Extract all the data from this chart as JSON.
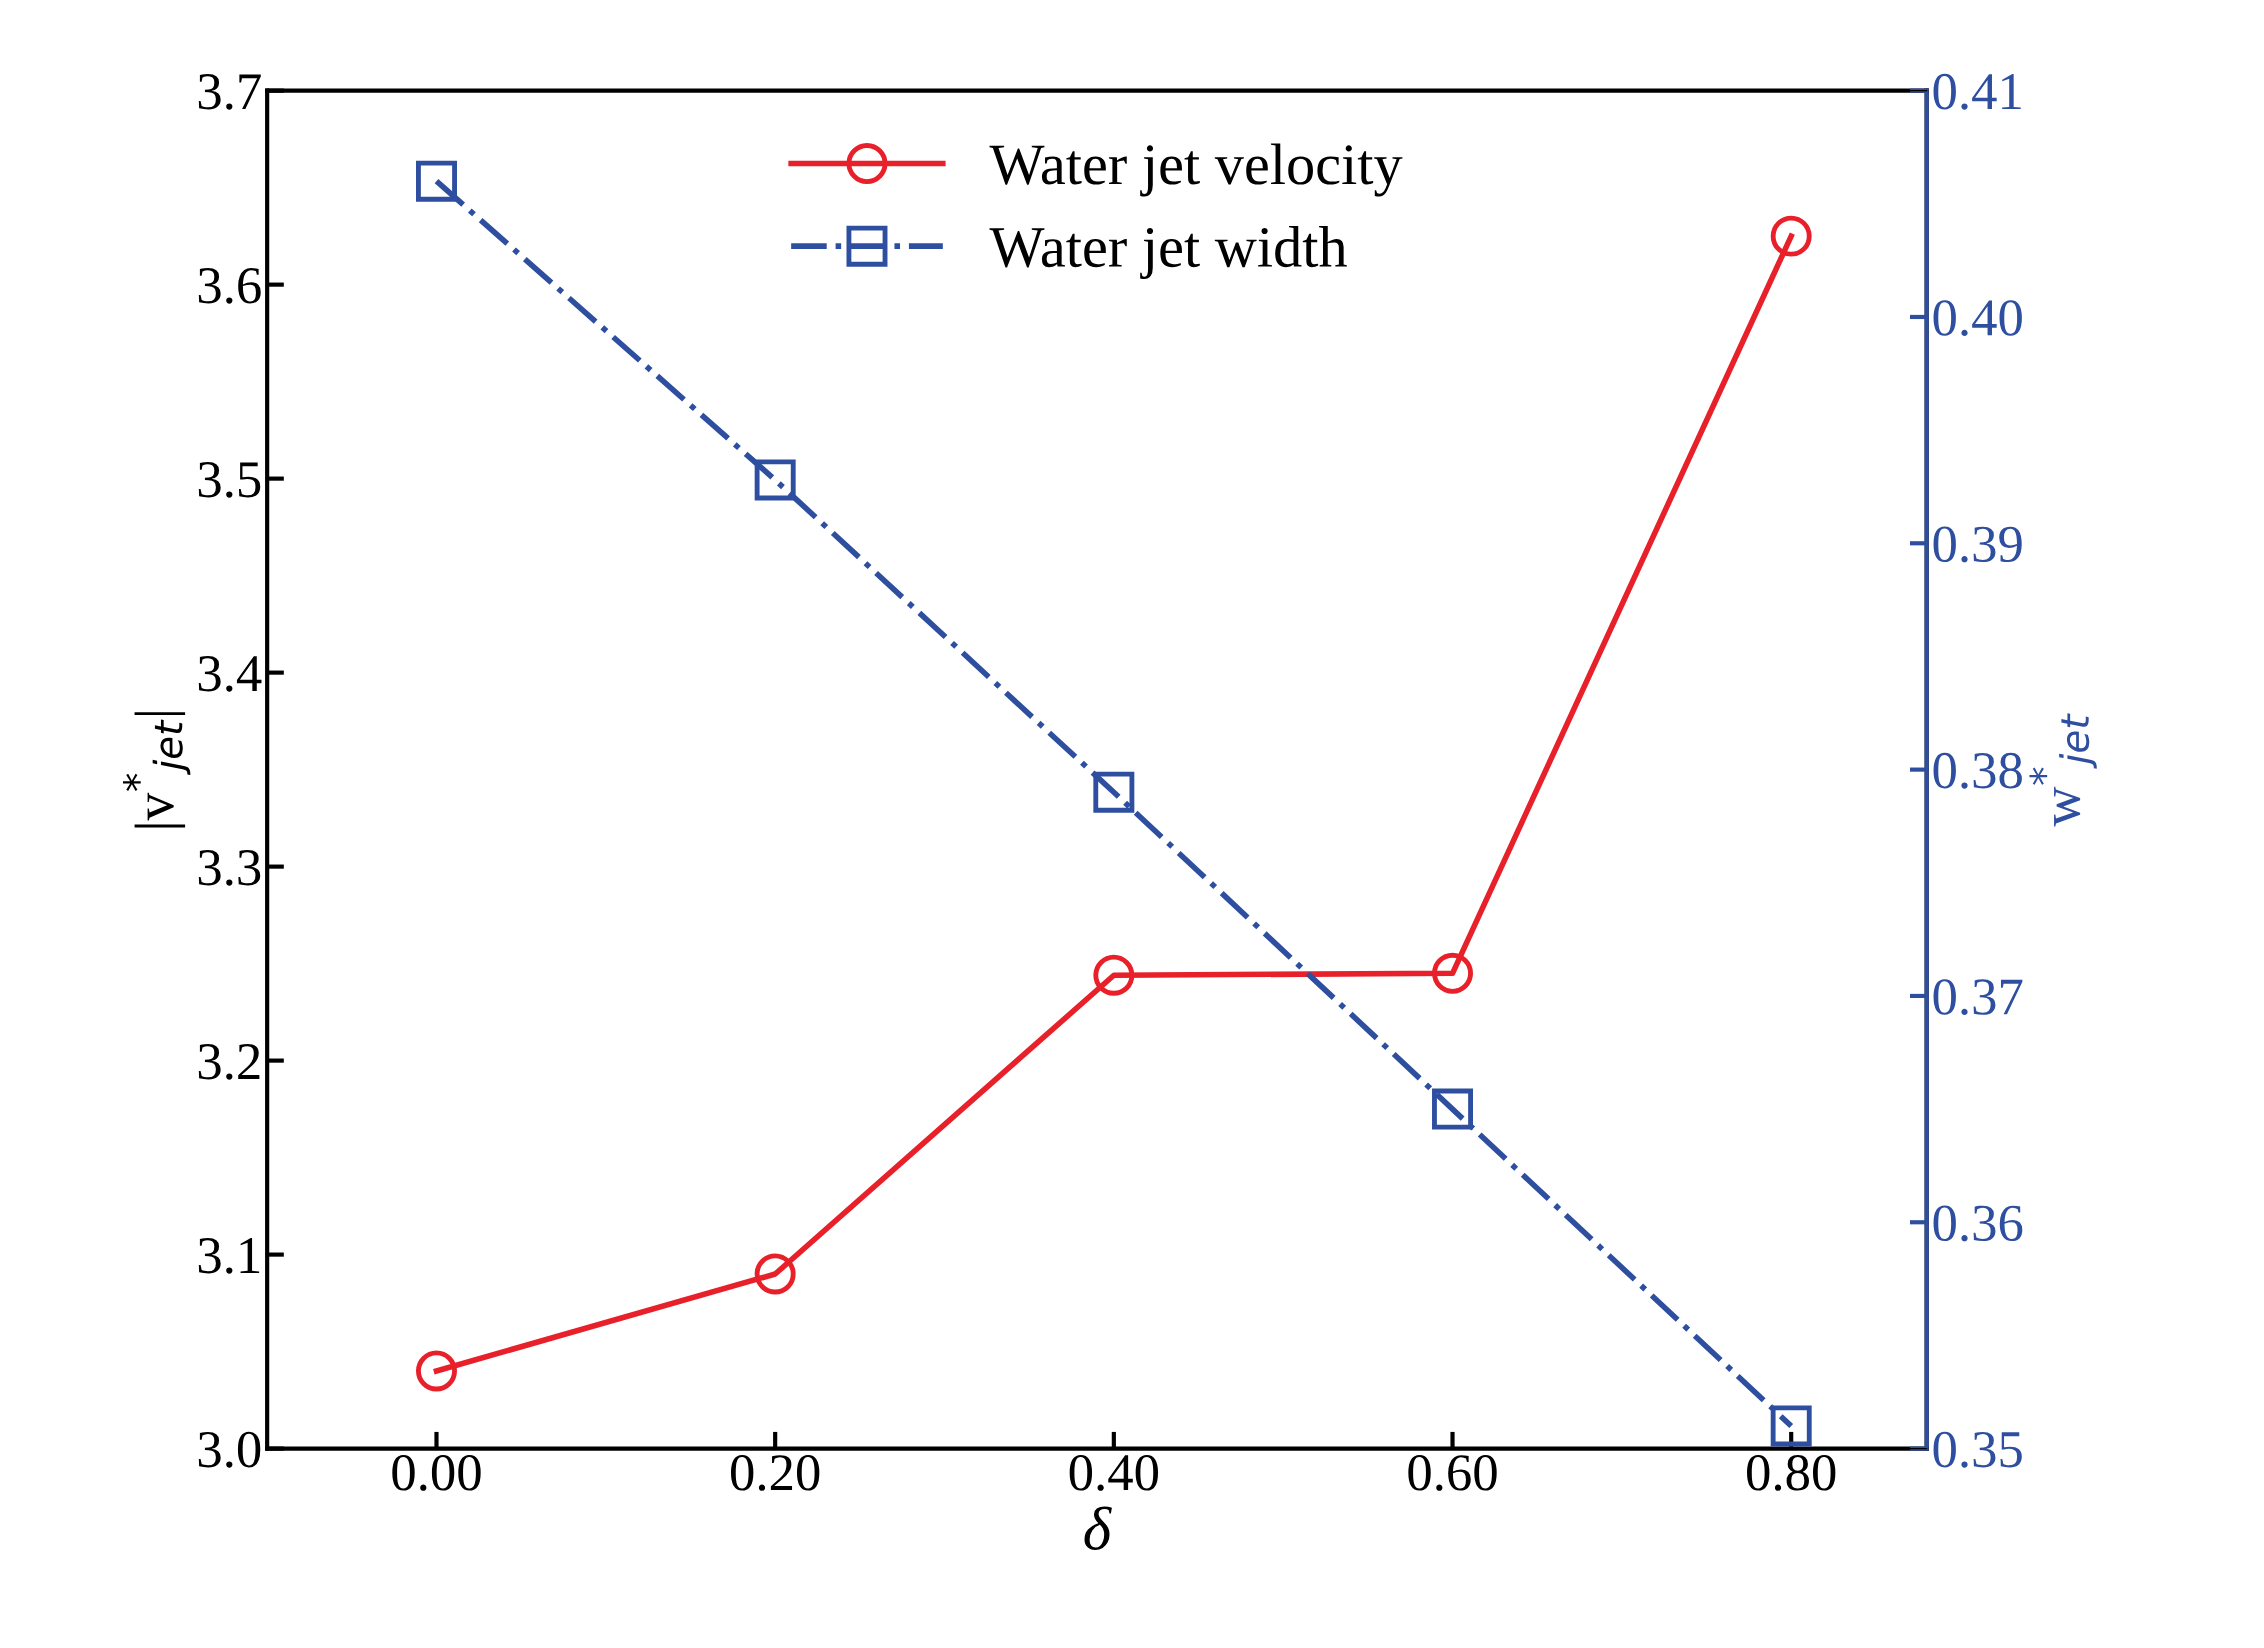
{
  "chart_data": {
    "type": "line",
    "xlabel": "δ",
    "ylabel": "|v$^{*}$$_{jet}$|",
    "y2label": "w$^{*}$$_{jet}$",
    "x": [
      0.0,
      0.2,
      0.4,
      0.6,
      0.8
    ],
    "xlim": [
      -0.1,
      0.88
    ],
    "xticks": [
      {
        "value": 0,
        "label": "0.00"
      },
      {
        "value": 0.2,
        "label": "0.20"
      },
      {
        "value": 0.4,
        "label": "0.40"
      },
      {
        "value": 0.6,
        "label": "0.60"
      },
      {
        "value": 0.8,
        "label": "0.80"
      }
    ],
    "ylim": [
      3.0,
      3.7
    ],
    "yticks": [
      {
        "value": 3.0,
        "label": "3.0"
      },
      3.1,
      3.2,
      3.3,
      3.4,
      3.5,
      3.6,
      3.7
    ],
    "y2lim": [
      0.35,
      0.41
    ],
    "y2ticks": [
      0.35,
      0.36,
      0.37,
      0.38,
      0.39,
      {
        "value": 0.4,
        "label": "0.40"
      },
      0.41
    ],
    "legend": "top",
    "grid": false,
    "series": [
      {
        "name": "Water jet velocity",
        "color": "#e8202a",
        "marker": "circle",
        "line_style": "solid",
        "values": [
          3.04,
          3.09,
          3.244,
          3.245,
          3.625
        ]
      },
      {
        "name": "Water jet width",
        "color": "#2e4ea0",
        "marker": "square",
        "line_style": "dashdot",
        "axis": "y2",
        "values": [
          0.406,
          0.3928,
          0.379,
          0.365,
          0.351
        ]
      }
    ]
  }
}
